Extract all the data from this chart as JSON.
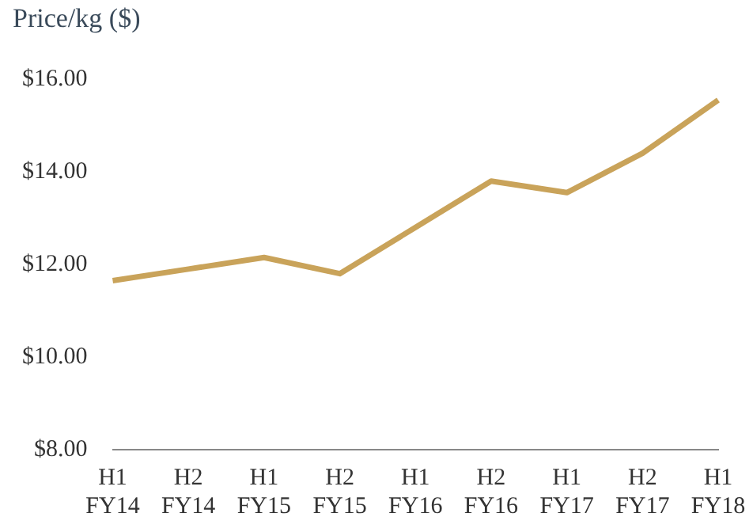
{
  "chart_data": {
    "type": "line",
    "title": "Price/kg ($)",
    "categories": [
      "H1\nFY14",
      "H2\nFY14",
      "H1\nFY15",
      "H2\nFY15",
      "H1\nFY16",
      "H2\nFY16",
      "H1\nFY17",
      "H2\nFY17",
      "H1\nFY18"
    ],
    "series": [
      {
        "color": "#c9a35a",
        "values": [
          11.65,
          11.9,
          12.15,
          11.8,
          12.8,
          13.8,
          13.55,
          14.4,
          15.55
        ]
      }
    ],
    "ylim": [
      8,
      16
    ],
    "yticks": [
      {
        "value": 8,
        "label": "$8.00"
      },
      {
        "value": 10,
        "label": "$10.00"
      },
      {
        "value": 12,
        "label": "$12.00"
      },
      {
        "value": 14,
        "label": "$14.00"
      },
      {
        "value": 16,
        "label": "$16.00"
      }
    ],
    "grid": false,
    "legend": false,
    "marker": "none",
    "line_style": "solid"
  }
}
